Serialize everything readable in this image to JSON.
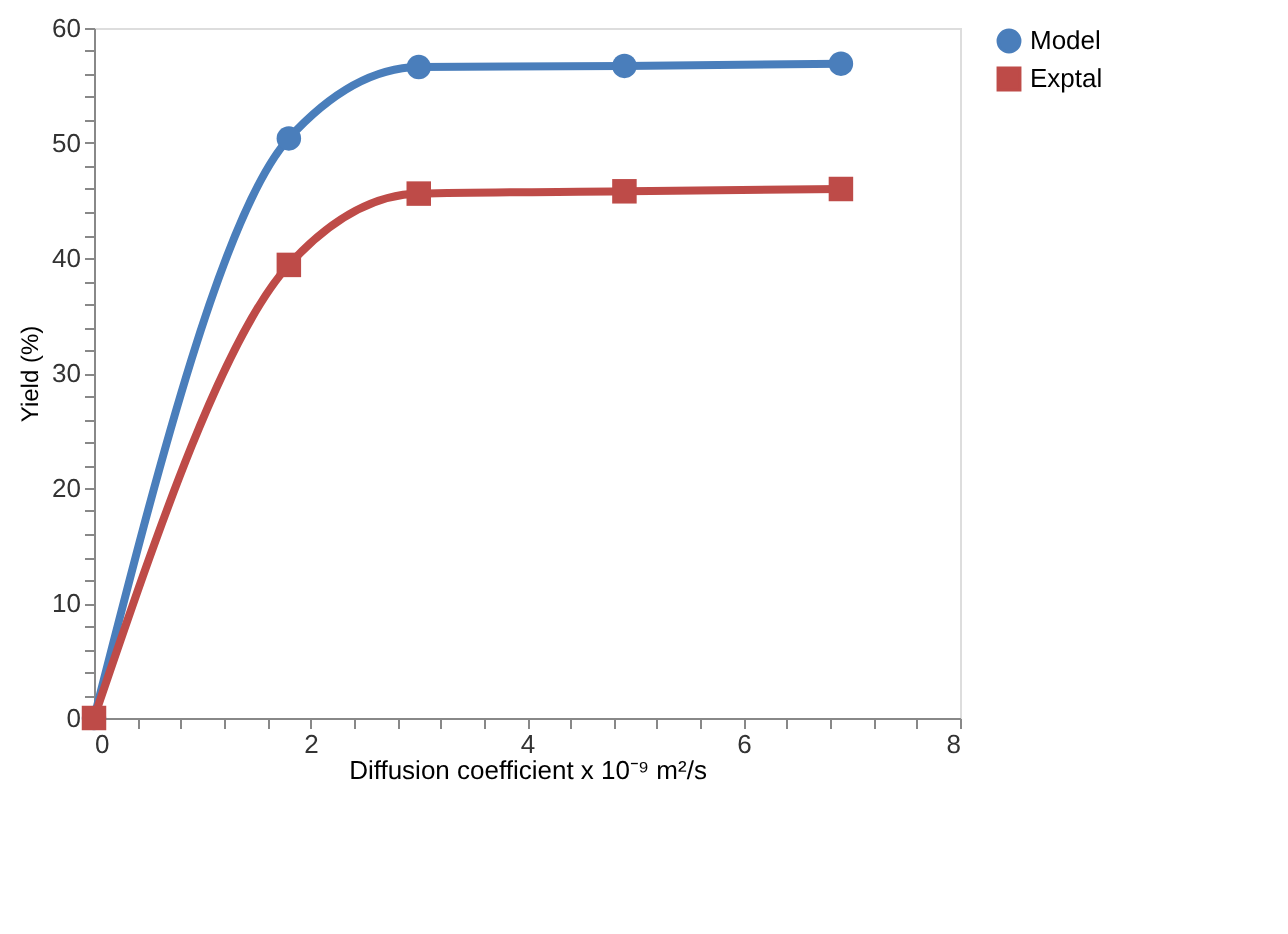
{
  "chart_data": {
    "type": "line",
    "xlabel": "Diffusion coefficient x 10⁻⁹ m²/s",
    "ylabel": "Yield (%)",
    "xlim": [
      0,
      8
    ],
    "ylim": [
      0,
      60
    ],
    "xticks": [
      0,
      {
        "value": 0.4,
        "label": null
      },
      {
        "value": 0.8,
        "label": null
      },
      {
        "value": 1.2,
        "label": null
      },
      {
        "value": 1.6,
        "label": null
      },
      2,
      {
        "value": 2.4,
        "label": null
      },
      {
        "value": 2.8,
        "label": null
      },
      {
        "value": 3.2,
        "label": null
      },
      {
        "value": 3.6,
        "label": null
      },
      4,
      {
        "value": 4.4,
        "label": null
      },
      {
        "value": 4.8,
        "label": null
      },
      {
        "value": 5.2,
        "label": null
      },
      {
        "value": 5.6,
        "label": null
      },
      6,
      {
        "value": 6.4,
        "label": null
      },
      {
        "value": 6.8,
        "label": null
      },
      {
        "value": 7.2,
        "label": null
      },
      {
        "value": 7.6,
        "label": null
      },
      8
    ],
    "yticks": [
      0,
      {
        "value": 2,
        "label": null
      },
      {
        "value": 4,
        "label": null
      },
      {
        "value": 6,
        "label": null
      },
      {
        "value": 8,
        "label": null
      },
      10,
      {
        "value": 12,
        "label": null
      },
      {
        "value": 14,
        "label": null
      },
      {
        "value": 16,
        "label": null
      },
      {
        "value": 18,
        "label": null
      },
      20,
      {
        "value": 22,
        "label": null
      },
      {
        "value": 24,
        "label": null
      },
      {
        "value": 26,
        "label": null
      },
      {
        "value": 28,
        "label": null
      },
      30,
      {
        "value": 32,
        "label": null
      },
      {
        "value": 34,
        "label": null
      },
      {
        "value": 36,
        "label": null
      },
      {
        "value": 38,
        "label": null
      },
      40,
      {
        "value": 42,
        "label": null
      },
      {
        "value": 44,
        "label": null
      },
      {
        "value": 46,
        "label": null
      },
      {
        "value": 48,
        "label": null
      },
      50,
      {
        "value": 52,
        "label": null
      },
      {
        "value": 54,
        "label": null
      },
      {
        "value": 56,
        "label": null
      },
      {
        "value": 58,
        "label": null
      },
      60
    ],
    "x": [
      0,
      1.8,
      3.0,
      4.9,
      6.9
    ],
    "series": [
      {
        "name": "Model",
        "color": "#4a7ebb",
        "marker": "circle",
        "values": [
          0,
          50.4,
          56.6,
          56.7,
          56.9
        ]
      },
      {
        "name": "Exptal",
        "color": "#be4b48",
        "marker": "square",
        "values": [
          0,
          39.4,
          45.6,
          45.8,
          46.0
        ]
      }
    ],
    "grid": false,
    "legend": "right",
    "line_style": "solid"
  }
}
